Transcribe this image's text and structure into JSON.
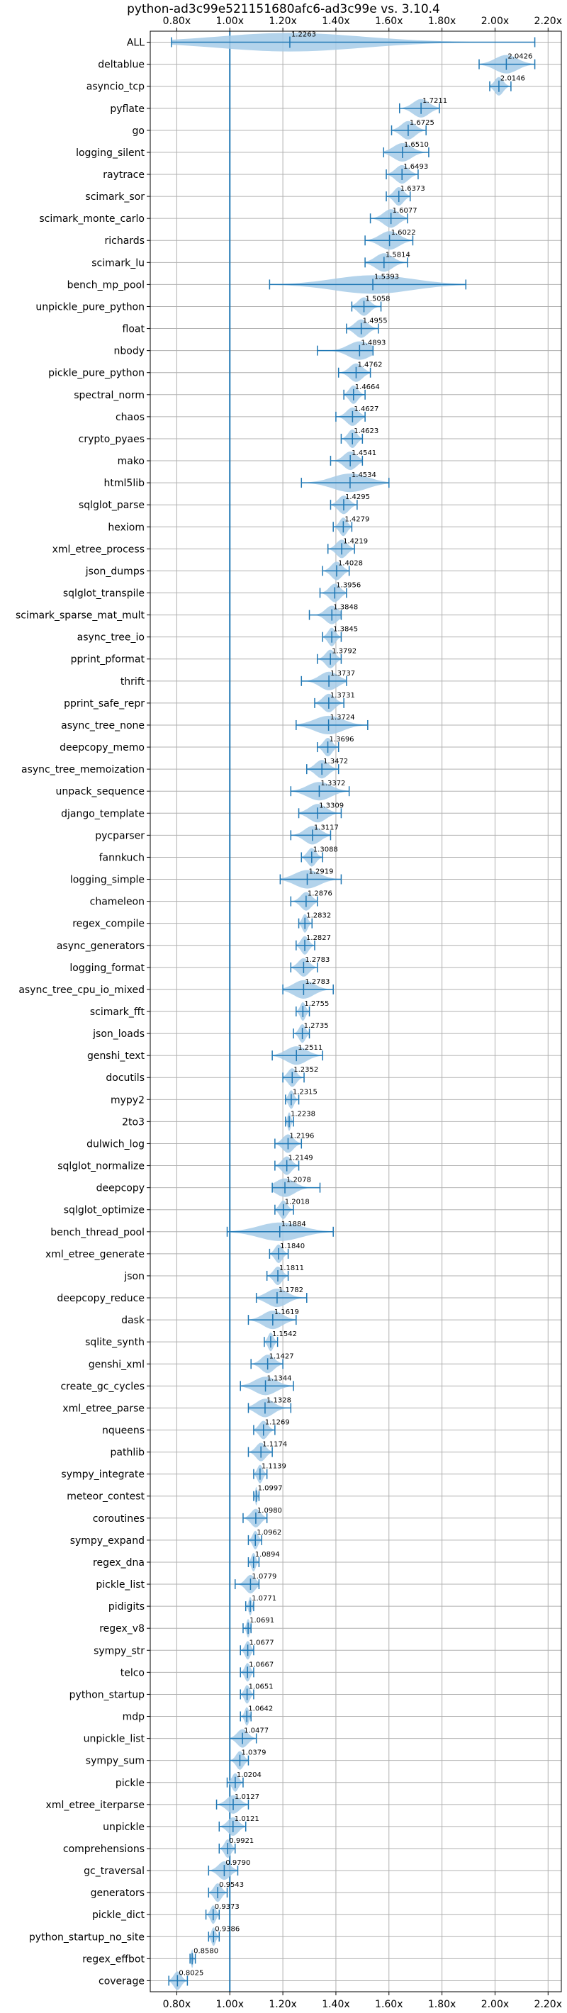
{
  "chart_data": {
    "type": "violin",
    "title": "python-ad3c99e521151680afc6-ad3c99e vs. 3.10.4",
    "xlabel": "",
    "ylabel": "",
    "xlim": [
      0.7,
      2.25
    ],
    "xticks": [
      0.8,
      1.0,
      1.2,
      1.4,
      1.6,
      1.8,
      2.0,
      2.2
    ],
    "xtick_labels": [
      "0.80x",
      "1.00x",
      "1.20x",
      "1.40x",
      "1.60x",
      "1.80x",
      "2.00x",
      "2.20x"
    ],
    "reference_line": 1.0,
    "grid": true,
    "color": "#1f77b4",
    "fill_color": "#a6cbe8",
    "benchmarks": [
      {
        "name": "ALL",
        "value": 1.2263,
        "min": 0.78,
        "max": 2.15
      },
      {
        "name": "deltablue",
        "value": 2.0426,
        "min": 1.94,
        "max": 2.15
      },
      {
        "name": "asyncio_tcp",
        "value": 2.0146,
        "min": 1.98,
        "max": 2.06
      },
      {
        "name": "pyflate",
        "value": 1.7211,
        "min": 1.64,
        "max": 1.79
      },
      {
        "name": "go",
        "value": 1.6725,
        "min": 1.61,
        "max": 1.74
      },
      {
        "name": "logging_silent",
        "value": 1.651,
        "min": 1.58,
        "max": 1.75
      },
      {
        "name": "raytrace",
        "value": 1.6493,
        "min": 1.59,
        "max": 1.71
      },
      {
        "name": "scimark_sor",
        "value": 1.6373,
        "min": 1.59,
        "max": 1.68
      },
      {
        "name": "scimark_monte_carlo",
        "value": 1.6077,
        "min": 1.53,
        "max": 1.67
      },
      {
        "name": "richards",
        "value": 1.6022,
        "min": 1.51,
        "max": 1.69
      },
      {
        "name": "scimark_lu",
        "value": 1.5814,
        "min": 1.51,
        "max": 1.67
      },
      {
        "name": "bench_mp_pool",
        "value": 1.5393,
        "min": 1.15,
        "max": 1.89
      },
      {
        "name": "unpickle_pure_python",
        "value": 1.5058,
        "min": 1.46,
        "max": 1.57
      },
      {
        "name": "float",
        "value": 1.4955,
        "min": 1.44,
        "max": 1.56
      },
      {
        "name": "nbody",
        "value": 1.4893,
        "min": 1.33,
        "max": 1.54
      },
      {
        "name": "pickle_pure_python",
        "value": 1.4762,
        "min": 1.41,
        "max": 1.53
      },
      {
        "name": "spectral_norm",
        "value": 1.4664,
        "min": 1.43,
        "max": 1.51
      },
      {
        "name": "chaos",
        "value": 1.4627,
        "min": 1.4,
        "max": 1.51
      },
      {
        "name": "crypto_pyaes",
        "value": 1.4623,
        "min": 1.42,
        "max": 1.5
      },
      {
        "name": "mako",
        "value": 1.4541,
        "min": 1.38,
        "max": 1.5
      },
      {
        "name": "html5lib",
        "value": 1.4534,
        "min": 1.27,
        "max": 1.6
      },
      {
        "name": "sqlglot_parse",
        "value": 1.4295,
        "min": 1.38,
        "max": 1.48
      },
      {
        "name": "hexiom",
        "value": 1.4279,
        "min": 1.39,
        "max": 1.46
      },
      {
        "name": "xml_etree_process",
        "value": 1.4219,
        "min": 1.37,
        "max": 1.47
      },
      {
        "name": "json_dumps",
        "value": 1.4028,
        "min": 1.35,
        "max": 1.45
      },
      {
        "name": "sqlglot_transpile",
        "value": 1.3956,
        "min": 1.34,
        "max": 1.44
      },
      {
        "name": "scimark_sparse_mat_mult",
        "value": 1.3848,
        "min": 1.3,
        "max": 1.42
      },
      {
        "name": "async_tree_io",
        "value": 1.3845,
        "min": 1.35,
        "max": 1.42
      },
      {
        "name": "pprint_pformat",
        "value": 1.3792,
        "min": 1.33,
        "max": 1.42
      },
      {
        "name": "thrift",
        "value": 1.3737,
        "min": 1.27,
        "max": 1.44
      },
      {
        "name": "pprint_safe_repr",
        "value": 1.3731,
        "min": 1.32,
        "max": 1.43
      },
      {
        "name": "async_tree_none",
        "value": 1.3724,
        "min": 1.25,
        "max": 1.52
      },
      {
        "name": "deepcopy_memo",
        "value": 1.3696,
        "min": 1.33,
        "max": 1.41
      },
      {
        "name": "async_tree_memoization",
        "value": 1.3472,
        "min": 1.29,
        "max": 1.41
      },
      {
        "name": "unpack_sequence",
        "value": 1.3372,
        "min": 1.23,
        "max": 1.45
      },
      {
        "name": "django_template",
        "value": 1.3309,
        "min": 1.26,
        "max": 1.42
      },
      {
        "name": "pycparser",
        "value": 1.3117,
        "min": 1.23,
        "max": 1.38
      },
      {
        "name": "fannkuch",
        "value": 1.3088,
        "min": 1.27,
        "max": 1.35
      },
      {
        "name": "logging_simple",
        "value": 1.2919,
        "min": 1.19,
        "max": 1.42
      },
      {
        "name": "chameleon",
        "value": 1.2876,
        "min": 1.23,
        "max": 1.33
      },
      {
        "name": "regex_compile",
        "value": 1.2832,
        "min": 1.26,
        "max": 1.31
      },
      {
        "name": "async_generators",
        "value": 1.2827,
        "min": 1.25,
        "max": 1.32
      },
      {
        "name": "logging_format",
        "value": 1.2783,
        "min": 1.23,
        "max": 1.33
      },
      {
        "name": "async_tree_cpu_io_mixed",
        "value": 1.2783,
        "min": 1.2,
        "max": 1.39
      },
      {
        "name": "scimark_fft",
        "value": 1.2755,
        "min": 1.25,
        "max": 1.3
      },
      {
        "name": "json_loads",
        "value": 1.2735,
        "min": 1.24,
        "max": 1.3
      },
      {
        "name": "genshi_text",
        "value": 1.2511,
        "min": 1.16,
        "max": 1.35
      },
      {
        "name": "docutils",
        "value": 1.2352,
        "min": 1.2,
        "max": 1.28
      },
      {
        "name": "mypy2",
        "value": 1.2315,
        "min": 1.21,
        "max": 1.26
      },
      {
        "name": "2to3",
        "value": 1.2238,
        "min": 1.21,
        "max": 1.24
      },
      {
        "name": "dulwich_log",
        "value": 1.2196,
        "min": 1.17,
        "max": 1.27
      },
      {
        "name": "sqlglot_normalize",
        "value": 1.2149,
        "min": 1.17,
        "max": 1.26
      },
      {
        "name": "deepcopy",
        "value": 1.2078,
        "min": 1.16,
        "max": 1.34
      },
      {
        "name": "sqlglot_optimize",
        "value": 1.2018,
        "min": 1.17,
        "max": 1.24
      },
      {
        "name": "bench_thread_pool",
        "value": 1.1884,
        "min": 0.99,
        "max": 1.39
      },
      {
        "name": "xml_etree_generate",
        "value": 1.184,
        "min": 1.15,
        "max": 1.22
      },
      {
        "name": "json",
        "value": 1.1811,
        "min": 1.14,
        "max": 1.22
      },
      {
        "name": "deepcopy_reduce",
        "value": 1.1782,
        "min": 1.1,
        "max": 1.29
      },
      {
        "name": "dask",
        "value": 1.1619,
        "min": 1.07,
        "max": 1.25
      },
      {
        "name": "sqlite_synth",
        "value": 1.1542,
        "min": 1.13,
        "max": 1.18
      },
      {
        "name": "genshi_xml",
        "value": 1.1427,
        "min": 1.08,
        "max": 1.2
      },
      {
        "name": "create_gc_cycles",
        "value": 1.1344,
        "min": 1.04,
        "max": 1.24
      },
      {
        "name": "xml_etree_parse",
        "value": 1.1328,
        "min": 1.07,
        "max": 1.23
      },
      {
        "name": "nqueens",
        "value": 1.1269,
        "min": 1.09,
        "max": 1.17
      },
      {
        "name": "pathlib",
        "value": 1.1174,
        "min": 1.07,
        "max": 1.16
      },
      {
        "name": "sympy_integrate",
        "value": 1.1139,
        "min": 1.09,
        "max": 1.14
      },
      {
        "name": "meteor_contest",
        "value": 1.0997,
        "min": 1.09,
        "max": 1.11
      },
      {
        "name": "coroutines",
        "value": 1.098,
        "min": 1.05,
        "max": 1.14
      },
      {
        "name": "sympy_expand",
        "value": 1.0962,
        "min": 1.07,
        "max": 1.12
      },
      {
        "name": "regex_dna",
        "value": 1.0894,
        "min": 1.07,
        "max": 1.11
      },
      {
        "name": "pickle_list",
        "value": 1.0779,
        "min": 1.02,
        "max": 1.11
      },
      {
        "name": "pidigits",
        "value": 1.0771,
        "min": 1.06,
        "max": 1.09
      },
      {
        "name": "regex_v8",
        "value": 1.0691,
        "min": 1.05,
        "max": 1.08
      },
      {
        "name": "sympy_str",
        "value": 1.0677,
        "min": 1.04,
        "max": 1.09
      },
      {
        "name": "telco",
        "value": 1.0667,
        "min": 1.04,
        "max": 1.09
      },
      {
        "name": "python_startup",
        "value": 1.0651,
        "min": 1.04,
        "max": 1.09
      },
      {
        "name": "mdp",
        "value": 1.0642,
        "min": 1.04,
        "max": 1.08
      },
      {
        "name": "unpickle_list",
        "value": 1.0477,
        "min": 1.0,
        "max": 1.1
      },
      {
        "name": "sympy_sum",
        "value": 1.0379,
        "min": 1.0,
        "max": 1.07
      },
      {
        "name": "pickle",
        "value": 1.0204,
        "min": 0.99,
        "max": 1.05
      },
      {
        "name": "xml_etree_iterparse",
        "value": 1.0127,
        "min": 0.95,
        "max": 1.07
      },
      {
        "name": "unpickle",
        "value": 1.0121,
        "min": 0.96,
        "max": 1.06
      },
      {
        "name": "comprehensions",
        "value": 0.9921,
        "min": 0.96,
        "max": 1.02
      },
      {
        "name": "gc_traversal",
        "value": 0.979,
        "min": 0.92,
        "max": 1.03
      },
      {
        "name": "generators",
        "value": 0.9543,
        "min": 0.92,
        "max": 0.99
      },
      {
        "name": "pickle_dict",
        "value": 0.9373,
        "min": 0.91,
        "max": 0.96
      },
      {
        "name": "python_startup_no_site",
        "value": 0.9386,
        "min": 0.92,
        "max": 0.96
      },
      {
        "name": "regex_effbot",
        "value": 0.858,
        "min": 0.85,
        "max": 0.87
      },
      {
        "name": "coverage",
        "value": 0.8025,
        "min": 0.77,
        "max": 0.84
      }
    ]
  }
}
